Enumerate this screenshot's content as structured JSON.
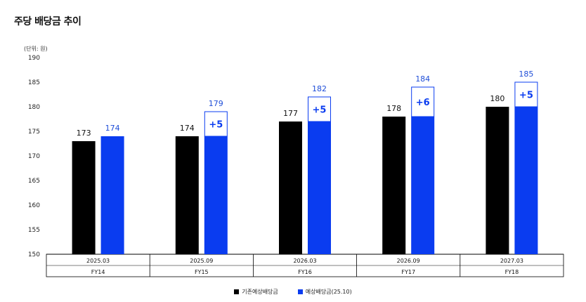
{
  "title": "주당 배당금 추이",
  "unit_label": "(단위: 원)",
  "colors": {
    "existing": "#000000",
    "forecast": "#0a3cf0",
    "delta_text": "#0a3cf0",
    "forecast_label": "#1f4ed8"
  },
  "chart_data": {
    "type": "bar",
    "ylim": [
      150,
      190
    ],
    "yticks": [
      150,
      155,
      160,
      165,
      170,
      175,
      180,
      185,
      190
    ],
    "categories": [
      "2025.03",
      "2025.09",
      "2026.03",
      "2026.09",
      "2027.03"
    ],
    "fiscal_years": [
      "FY14",
      "FY15",
      "FY16",
      "FY17",
      "FY18"
    ],
    "series": [
      {
        "name": "기존예상배당금",
        "values": [
          173,
          174,
          177,
          178,
          180
        ]
      },
      {
        "name": "예상배당금(25.10)",
        "values": [
          174,
          179,
          182,
          184,
          185
        ]
      }
    ],
    "increase_labels": [
      "",
      "+5",
      "+5",
      "+6",
      "+5"
    ],
    "legend": "bottom-center",
    "grid": false
  }
}
